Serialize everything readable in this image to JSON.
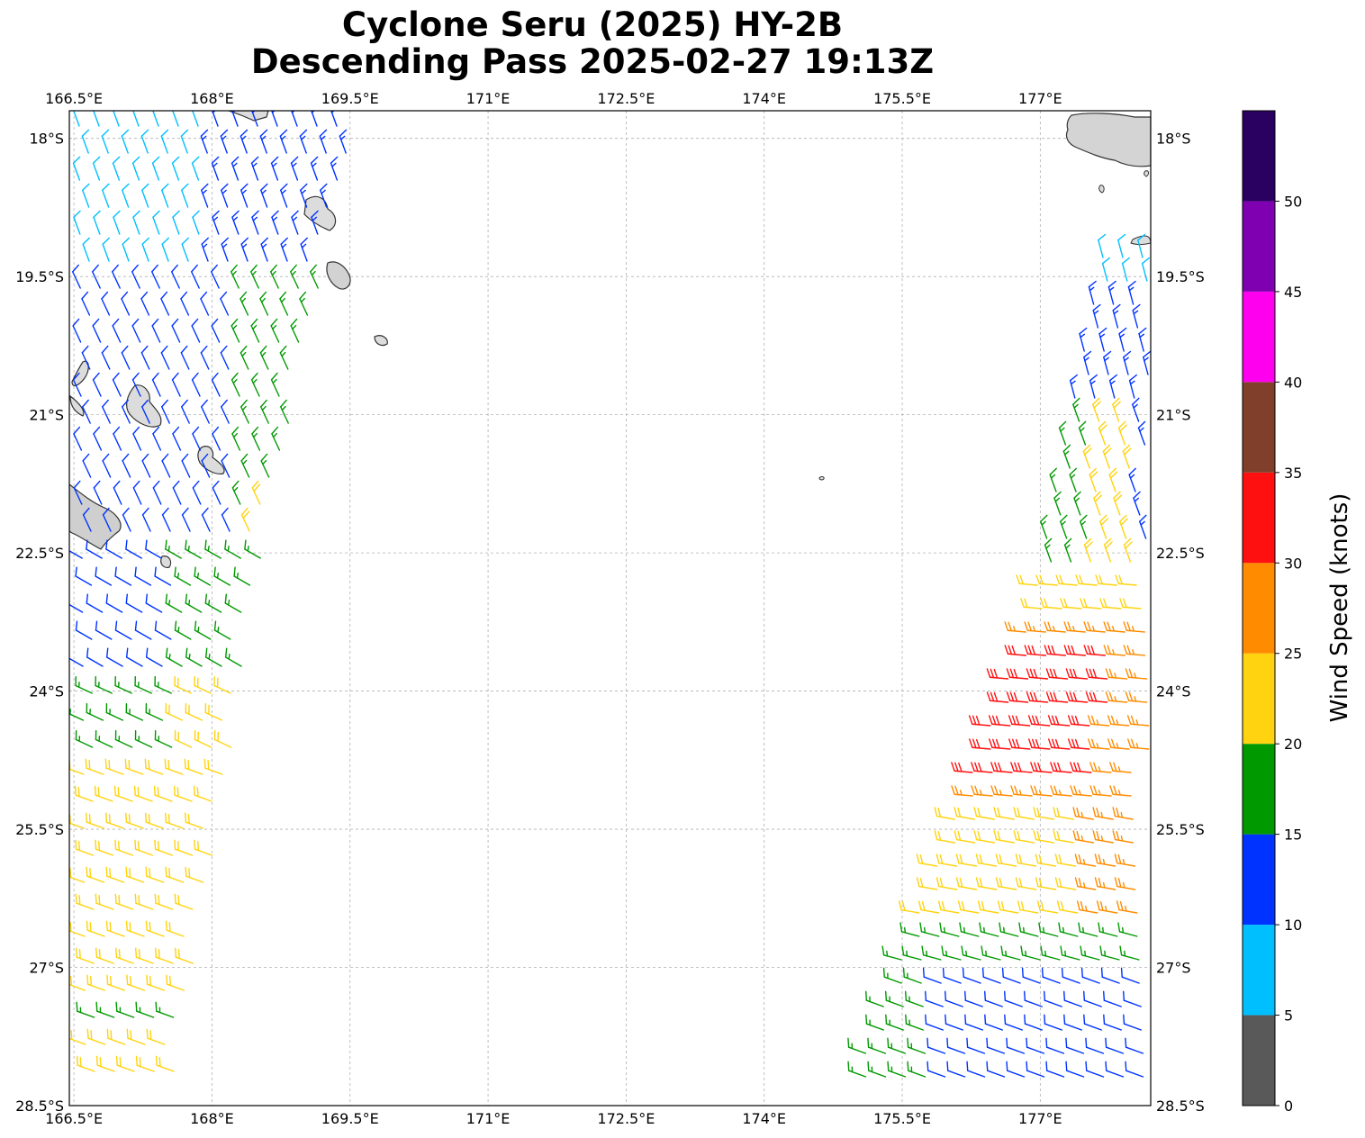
{
  "title": {
    "line1": "Cyclone Seru (2025) HY-2B",
    "line2": "Descending Pass 2025-02-27 19:13Z"
  },
  "map": {
    "lon_range": [
      166.45,
      178.2
    ],
    "lat_range": [
      -28.5,
      -17.7
    ],
    "lon_ticks": [
      {
        "value": 166.5,
        "label": "166.5°E"
      },
      {
        "value": 168,
        "label": "168°E"
      },
      {
        "value": 169.5,
        "label": "169.5°E"
      },
      {
        "value": 171,
        "label": "171°E"
      },
      {
        "value": 172.5,
        "label": "172.5°E"
      },
      {
        "value": 174,
        "label": "174°E"
      },
      {
        "value": 175.5,
        "label": "175.5°E"
      },
      {
        "value": 177,
        "label": "177°E"
      }
    ],
    "lat_ticks": [
      {
        "value": -18,
        "label": "18°S"
      },
      {
        "value": -19.5,
        "label": "19.5°S"
      },
      {
        "value": -21,
        "label": "21°S"
      },
      {
        "value": -22.5,
        "label": "22.5°S"
      },
      {
        "value": -24,
        "label": "24°S"
      },
      {
        "value": -25.5,
        "label": "25.5°S"
      },
      {
        "value": -27,
        "label": "27°S"
      },
      {
        "value": -28.5,
        "label": "28.5°S"
      }
    ],
    "gridlines": true,
    "land_color": "#dcdcdc",
    "coast_color": "#333333"
  },
  "colorbar": {
    "label": "Wind Speed (knots)",
    "bins": [
      {
        "min": 0,
        "max": 5,
        "color": "#595959"
      },
      {
        "min": 5,
        "max": 10,
        "color": "#00bfff"
      },
      {
        "min": 10,
        "max": 15,
        "color": "#0033ff"
      },
      {
        "min": 15,
        "max": 20,
        "color": "#009900"
      },
      {
        "min": 20,
        "max": 25,
        "color": "#ffd30f"
      },
      {
        "min": 25,
        "max": 30,
        "color": "#ff8c00"
      },
      {
        "min": 30,
        "max": 35,
        "color": "#ff1010"
      },
      {
        "min": 35,
        "max": 40,
        "color": "#7f3f2a"
      },
      {
        "min": 40,
        "max": 45,
        "color": "#ff00ee"
      },
      {
        "min": 45,
        "max": 50,
        "color": "#7f00b0"
      },
      {
        "min": 50,
        "max": 55,
        "color": "#2a0060"
      }
    ],
    "ticks": [
      "0",
      "5",
      "10",
      "15",
      "20",
      "25",
      "30",
      "35",
      "40",
      "45",
      "50"
    ]
  }
}
